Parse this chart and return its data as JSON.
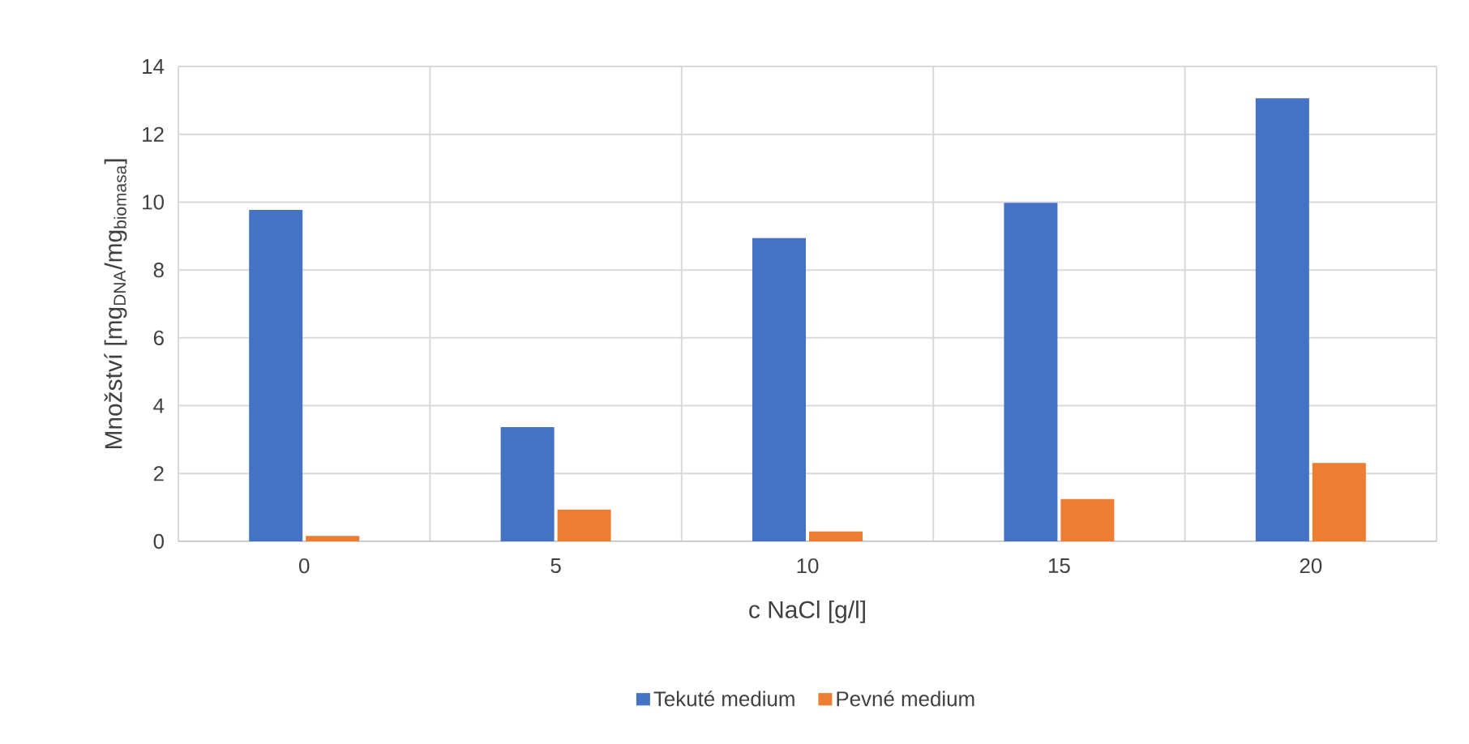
{
  "chart_data": {
    "type": "bar",
    "xlabel": "c NaCl [g/l]",
    "ylabel": "Množství [mg$_{DNA}$/mg$_{biomasa}$]",
    "categories": [
      "0",
      "5",
      "10",
      "15",
      "20"
    ],
    "series": [
      {
        "name": "Tekuté medium",
        "color": "#4472c4",
        "values": [
          9.77,
          3.37,
          8.94,
          9.98,
          13.06
        ]
      },
      {
        "name": "Pevné medium",
        "color": "#ed7d31",
        "values": [
          0.16,
          0.94,
          0.29,
          1.25,
          2.31
        ]
      }
    ],
    "ylim": [
      0,
      14
    ],
    "yticks": [
      0,
      2,
      4,
      6,
      8,
      10,
      12,
      14
    ],
    "grid": true,
    "legend": "bottom"
  }
}
